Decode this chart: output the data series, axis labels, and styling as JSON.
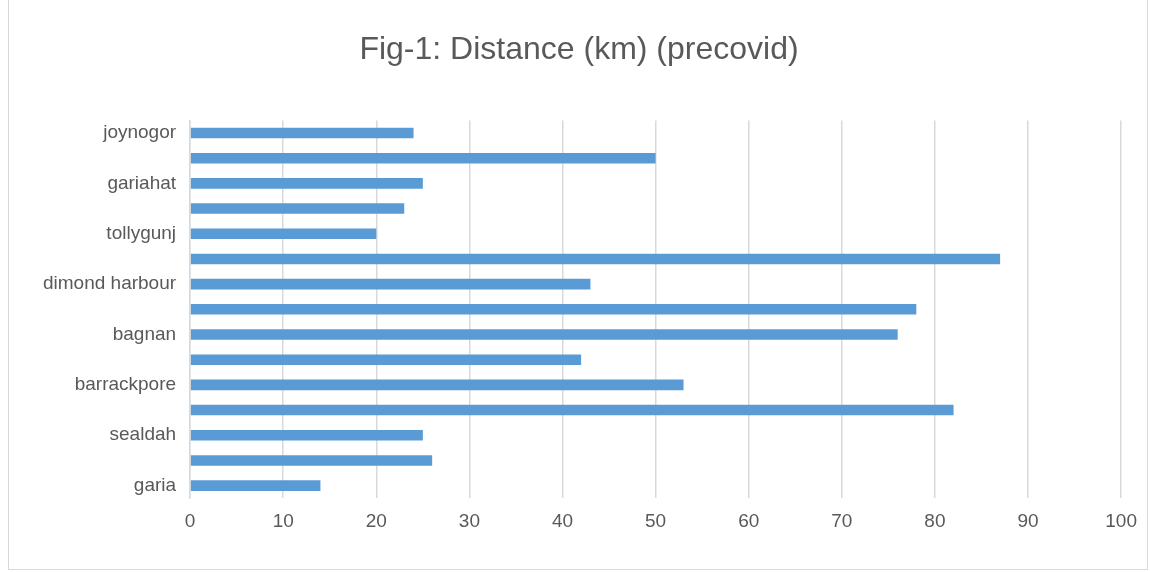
{
  "chart_data": {
    "type": "bar",
    "orientation": "horizontal",
    "title": "Fig-1: Distance (km) (precovid)",
    "categories": [
      "joynogor",
      null,
      "gariahat",
      null,
      "tollygunj",
      null,
      "dimond harbour",
      null,
      "bagnan",
      null,
      "barrackpore",
      null,
      "sealdah",
      null,
      "garia"
    ],
    "values": [
      24,
      50,
      25,
      23,
      20,
      87,
      43,
      78,
      76,
      42,
      53,
      82,
      25,
      26,
      14
    ],
    "color": "#5b9bd5",
    "xlim": [
      0,
      100
    ],
    "xticks": [
      0,
      10,
      20,
      30,
      40,
      50,
      60,
      70,
      80,
      90,
      100
    ],
    "grid": "x"
  }
}
